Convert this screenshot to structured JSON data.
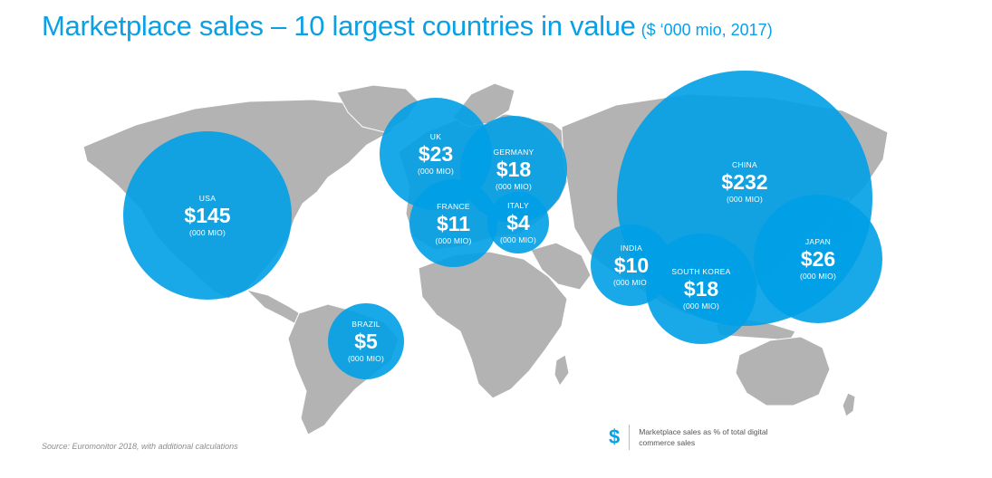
{
  "header": {
    "title": "Marketplace sales – 10 largest countries in value",
    "subtitle": "($ ‘000 mio, 2017)"
  },
  "colors": {
    "accent": "#0aa0e6",
    "land": "#b3b3b3",
    "bubble": "#0aa0e6"
  },
  "countries": [
    {
      "name": "USA",
      "value": "$145",
      "unit": "(000 MIO)"
    },
    {
      "name": "UK",
      "value": "$23",
      "unit": "(000 MIO)"
    },
    {
      "name": "GERMANY",
      "value": "$18",
      "unit": "(000 MIO)"
    },
    {
      "name": "FRANCE",
      "value": "$11",
      "unit": "(000 MIO)"
    },
    {
      "name": "ITALY",
      "value": "$4",
      "unit": "(000 MIO)"
    },
    {
      "name": "BRAZIL",
      "value": "$5",
      "unit": "(000 MIO)"
    },
    {
      "name": "CHINA",
      "value": "$232",
      "unit": "(000 MIO)"
    },
    {
      "name": "JAPAN",
      "value": "$26",
      "unit": "(000 MIO)"
    },
    {
      "name": "INDIA",
      "value": "$10",
      "unit": "(000 MIO)"
    },
    {
      "name": "SOUTH KOREA",
      "value": "$18",
      "unit": "(000 MIO)"
    }
  ],
  "legend": {
    "symbol": "$",
    "text": "Marketplace sales as % of total digital commerce sales"
  },
  "source": "Source: Euromonitor 2018, with additional calculations"
}
